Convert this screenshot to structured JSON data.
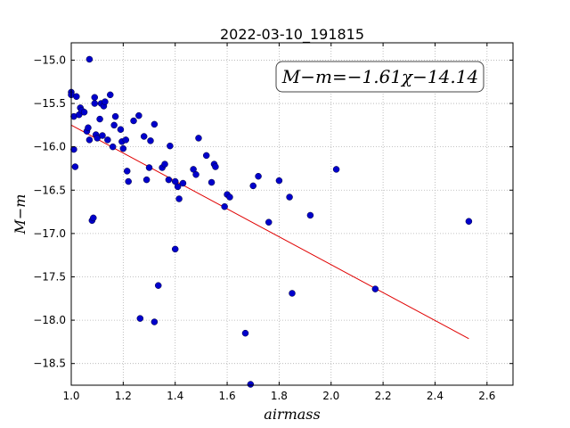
{
  "chart_data": {
    "type": "scatter",
    "title": "2022-03-10_191815",
    "xlabel": "airmass",
    "ylabel": "M−m",
    "annotation": "M−m=−1.61χ−14.14",
    "xlim": [
      1.0,
      2.7
    ],
    "ylim": [
      -18.75,
      -14.8
    ],
    "xticks": [
      1.0,
      1.2,
      1.4,
      1.6,
      1.8,
      2.0,
      2.2,
      2.4,
      2.6
    ],
    "xtick_labels": [
      "1.0",
      "1.2",
      "1.4",
      "1.6",
      "1.8",
      "2.0",
      "2.2",
      "2.4",
      "2.6"
    ],
    "yticks": [
      -15.0,
      -15.5,
      -16.0,
      -16.5,
      -17.0,
      -17.5,
      -18.0,
      -18.5
    ],
    "ytick_labels": [
      "−15.0",
      "−15.5",
      "−16.0",
      "−16.5",
      "−17.0",
      "−17.5",
      "−18.0",
      "−18.5"
    ],
    "grid": true,
    "fit": {
      "slope": -1.61,
      "intercept": -14.14,
      "x_range": [
        1.0,
        2.53
      ],
      "color": "#e00000"
    },
    "point_color": "#0000cc",
    "points": [
      [
        1.0,
        -15.37
      ],
      [
        1.0,
        -15.4
      ],
      [
        1.01,
        -15.65
      ],
      [
        1.01,
        -16.03
      ],
      [
        1.015,
        -16.23
      ],
      [
        1.02,
        -15.42
      ],
      [
        1.03,
        -15.63
      ],
      [
        1.035,
        -15.55
      ],
      [
        1.04,
        -15.58
      ],
      [
        1.05,
        -15.6
      ],
      [
        1.06,
        -15.82
      ],
      [
        1.065,
        -15.78
      ],
      [
        1.07,
        -14.99
      ],
      [
        1.07,
        -15.92
      ],
      [
        1.08,
        -16.85
      ],
      [
        1.085,
        -16.82
      ],
      [
        1.09,
        -15.43
      ],
      [
        1.09,
        -15.5
      ],
      [
        1.095,
        -15.86
      ],
      [
        1.1,
        -15.9
      ],
      [
        1.11,
        -15.68
      ],
      [
        1.115,
        -15.5
      ],
      [
        1.12,
        -15.87
      ],
      [
        1.125,
        -15.53
      ],
      [
        1.13,
        -15.48
      ],
      [
        1.14,
        -15.92
      ],
      [
        1.15,
        -15.4
      ],
      [
        1.16,
        -16.0
      ],
      [
        1.165,
        -15.75
      ],
      [
        1.17,
        -15.65
      ],
      [
        1.19,
        -15.8
      ],
      [
        1.195,
        -15.94
      ],
      [
        1.2,
        -16.02
      ],
      [
        1.21,
        -15.92
      ],
      [
        1.215,
        -16.28
      ],
      [
        1.22,
        -16.4
      ],
      [
        1.24,
        -15.7
      ],
      [
        1.26,
        -15.64
      ],
      [
        1.265,
        -17.98
      ],
      [
        1.28,
        -15.88
      ],
      [
        1.29,
        -16.38
      ],
      [
        1.3,
        -16.24
      ],
      [
        1.305,
        -15.93
      ],
      [
        1.32,
        -15.74
      ],
      [
        1.32,
        -18.02
      ],
      [
        1.335,
        -17.6
      ],
      [
        1.35,
        -16.24
      ],
      [
        1.36,
        -16.2
      ],
      [
        1.375,
        -16.38
      ],
      [
        1.38,
        -15.99
      ],
      [
        1.4,
        -16.4
      ],
      [
        1.4,
        -17.18
      ],
      [
        1.41,
        -16.46
      ],
      [
        1.415,
        -16.6
      ],
      [
        1.43,
        -16.42
      ],
      [
        1.47,
        -16.26
      ],
      [
        1.48,
        -16.32
      ],
      [
        1.49,
        -15.9
      ],
      [
        1.52,
        -16.1
      ],
      [
        1.54,
        -16.41
      ],
      [
        1.55,
        -16.2
      ],
      [
        1.555,
        -16.23
      ],
      [
        1.59,
        -16.69
      ],
      [
        1.6,
        -16.55
      ],
      [
        1.61,
        -16.58
      ],
      [
        1.67,
        -18.15
      ],
      [
        1.69,
        -18.74
      ],
      [
        1.7,
        -16.45
      ],
      [
        1.72,
        -16.34
      ],
      [
        1.76,
        -16.87
      ],
      [
        1.8,
        -16.39
      ],
      [
        1.84,
        -16.58
      ],
      [
        1.85,
        -17.69
      ],
      [
        1.92,
        -16.79
      ],
      [
        2.02,
        -16.26
      ],
      [
        2.17,
        -17.64
      ],
      [
        2.53,
        -16.86
      ]
    ]
  }
}
